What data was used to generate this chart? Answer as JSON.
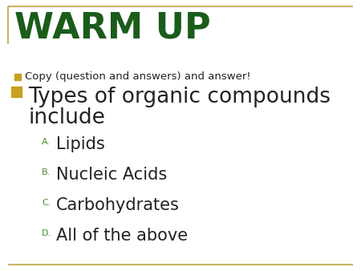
{
  "background_color": "#ffffff",
  "border_color": "#c8b464",
  "title": "WARM UP",
  "title_color": "#1a5c1a",
  "title_fontsize": 32,
  "bullet1_square_color": "#c8a020",
  "bullet1_text": "Copy (question and answers) and answer!",
  "bullet1_fontsize": 9.5,
  "bullet1_text_color": "#222222",
  "bullet2_square_color": "#c8a020",
  "bullet2_line1": "Types of organic compounds",
  "bullet2_line2": "include",
  "bullet2_fontsize": 19,
  "bullet2_text_color": "#222222",
  "sub_label_color": "#4a8a2a",
  "sub_text_color": "#222222",
  "sub_fontsize": 15,
  "sub_label_fontsize": 8,
  "answers": [
    {
      "label": "A.",
      "text": "Lipids"
    },
    {
      "label": "B.",
      "text": "Nucleic Acids"
    },
    {
      "label": "C.",
      "text": "Carbohydrates"
    },
    {
      "label": "D.",
      "text": "All of the above"
    }
  ]
}
